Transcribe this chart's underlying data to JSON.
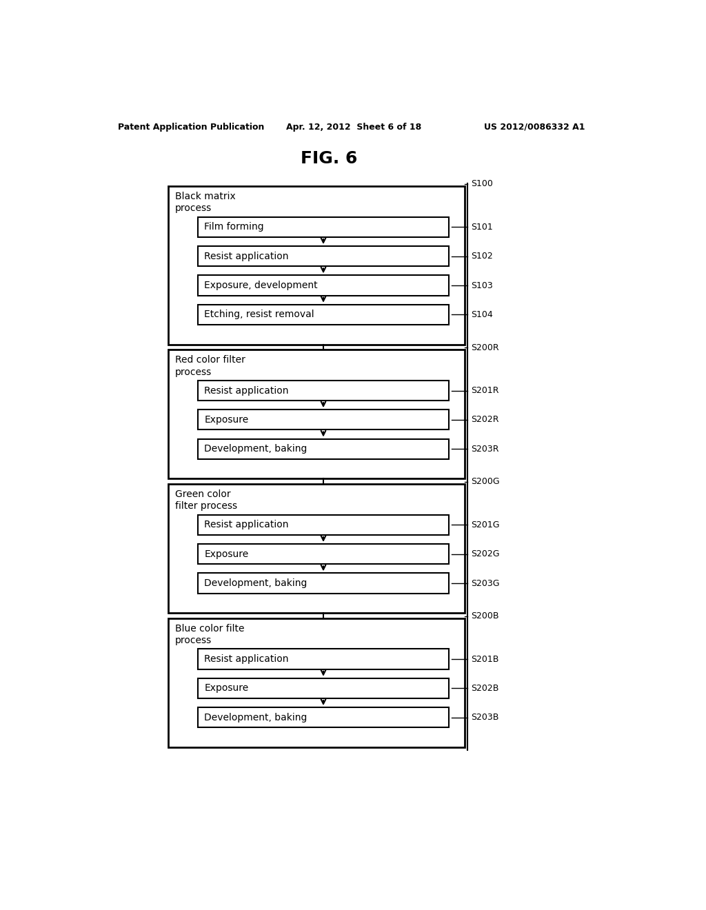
{
  "title": "FIG. 6",
  "header_left": "Patent Application Publication",
  "header_center": "Apr. 12, 2012  Sheet 6 of 18",
  "header_right": "US 2012/0086332 A1",
  "background_color": "#ffffff",
  "groups": [
    {
      "label": "Black matrix\nprocess",
      "label_id": "S100",
      "steps": [
        {
          "text": "Film forming",
          "id": "S101"
        },
        {
          "text": "Resist application",
          "id": "S102"
        },
        {
          "text": "Exposure, development",
          "id": "S103"
        },
        {
          "text": "Etching, resist removal",
          "id": "S104"
        }
      ]
    },
    {
      "label": "Red color filter\nprocess",
      "label_id": "S200R",
      "steps": [
        {
          "text": "Resist application",
          "id": "S201R"
        },
        {
          "text": "Exposure",
          "id": "S202R"
        },
        {
          "text": "Development, baking",
          "id": "S203R"
        }
      ]
    },
    {
      "label": "Green color\nfilter process",
      "label_id": "S200G",
      "steps": [
        {
          "text": "Resist application",
          "id": "S201G"
        },
        {
          "text": "Exposure",
          "id": "S202G"
        },
        {
          "text": "Development, baking",
          "id": "S203G"
        }
      ]
    },
    {
      "label": "Blue color filte\nprocess",
      "label_id": "S200B",
      "steps": [
        {
          "text": "Resist application",
          "id": "S201B"
        },
        {
          "text": "Exposure",
          "id": "S202B"
        },
        {
          "text": "Development, baking",
          "id": "S203B"
        }
      ]
    }
  ]
}
